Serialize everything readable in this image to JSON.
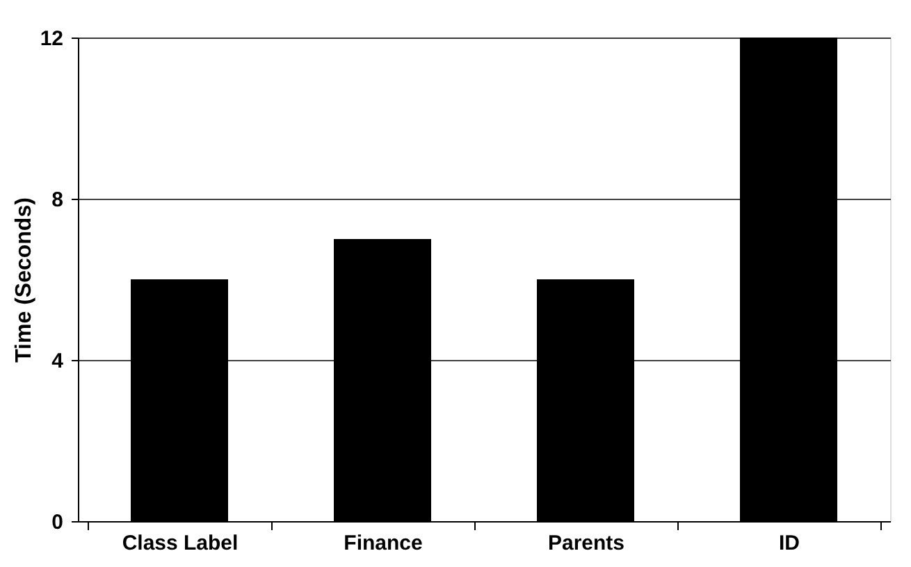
{
  "chart_data": {
    "type": "bar",
    "ylabel": "Time (Seconds)",
    "categories": [
      "Class Label",
      "Finance",
      "Parents",
      "ID"
    ],
    "values": [
      6,
      7,
      6,
      12
    ],
    "color": "#000000",
    "ylim": [
      0,
      12
    ],
    "yticks": [
      0,
      4,
      8,
      12
    ],
    "grid": "y"
  }
}
